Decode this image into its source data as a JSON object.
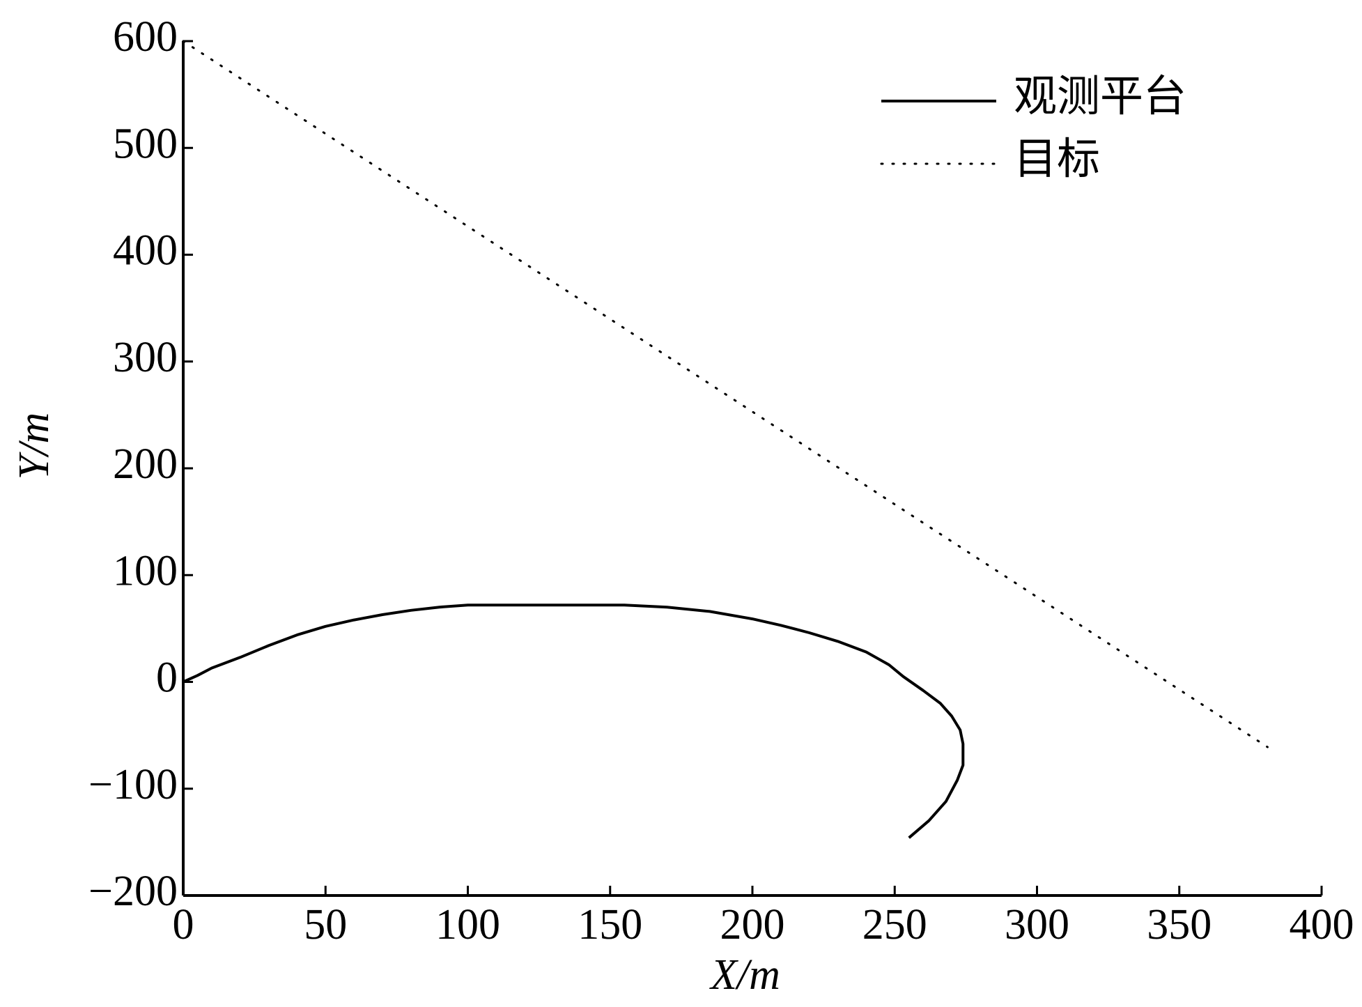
{
  "chart_data": {
    "type": "line",
    "x_label": "X/m",
    "y_label": "Y/m",
    "xlim": [
      0,
      400
    ],
    "ylim": [
      -200,
      600
    ],
    "xticks": [
      0,
      50,
      100,
      150,
      200,
      250,
      300,
      350,
      400
    ],
    "yticks": [
      {
        "value": -200,
        "label": "−200"
      },
      {
        "value": -100,
        "label": "−100"
      },
      0,
      100,
      200,
      300,
      400,
      500,
      600
    ],
    "grid": false,
    "legend": "upper right",
    "series": [
      {
        "name": "观测平台",
        "color": "#000000",
        "style": "solid",
        "x": [
          0,
          5,
          10,
          20,
          30,
          40,
          50,
          60,
          70,
          80,
          90,
          100,
          120,
          140,
          155,
          170,
          185,
          200,
          210,
          220,
          230,
          240,
          248,
          253,
          260,
          266,
          270,
          273,
          274,
          274,
          272,
          268,
          262,
          255
        ],
        "values": [
          0,
          6,
          13,
          23,
          34,
          44,
          52,
          58,
          63,
          67,
          70,
          72,
          72,
          72,
          72,
          70,
          66,
          59,
          53,
          46,
          38,
          28,
          16,
          5,
          -8,
          -20,
          -32,
          -45,
          -58,
          -78,
          -92,
          -112,
          -130,
          -146
        ]
      },
      {
        "name": "目标",
        "color": "#000000",
        "style": "dotted",
        "x": [
          0,
          381
        ],
        "values": [
          600,
          -61
        ]
      }
    ]
  }
}
